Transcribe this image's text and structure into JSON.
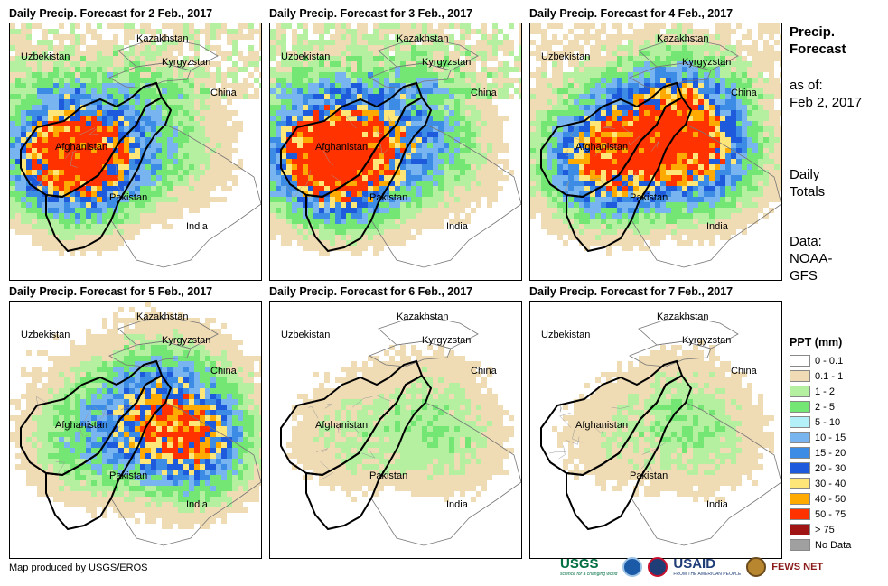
{
  "panels": [
    {
      "title": "Daily Precip. Forecast for 2 Feb., 2017",
      "intensity": [
        0.85,
        0.55,
        0.25,
        0.1
      ]
    },
    {
      "title": "Daily Precip. Forecast for 3 Feb., 2017",
      "intensity": [
        0.95,
        0.65,
        0.35,
        0.15
      ]
    },
    {
      "title": "Daily Precip. Forecast for 4 Feb., 2017",
      "intensity": [
        0.3,
        0.7,
        0.95,
        0.4
      ]
    },
    {
      "title": "Daily Precip. Forecast for 5 Feb., 2017",
      "intensity": [
        0.1,
        0.3,
        0.5,
        0.75
      ]
    },
    {
      "title": "Daily Precip. Forecast for 6 Feb., 2017",
      "intensity": [
        0.05,
        0.15,
        0.12,
        0.2
      ]
    },
    {
      "title": "Daily Precip. Forecast for 7 Feb., 2017",
      "intensity": [
        0.03,
        0.12,
        0.15,
        0.18
      ]
    }
  ],
  "countries": [
    "Kazakhstan",
    "Uzbekistan",
    "Kyrgyzstan",
    "China",
    "Afghanistan",
    "Pakistan",
    "India"
  ],
  "side": {
    "title_line1": "Precip.",
    "title_line2": "Forecast",
    "asof_line1": "as of:",
    "asof_line2": "Feb 2, 2017",
    "daily_line1": "Daily",
    "daily_line2": "Totals",
    "data_line1": "Data:",
    "data_line2": "NOAA-",
    "data_line3": "GFS"
  },
  "legend": {
    "title": "PPT (mm)",
    "items": [
      {
        "label": "0 - 0.1",
        "color": "#ffffff"
      },
      {
        "label": "0.1 - 1",
        "color": "#f0dcb4"
      },
      {
        "label": "1 - 2",
        "color": "#b4f0a0"
      },
      {
        "label": "2 - 5",
        "color": "#73e673"
      },
      {
        "label": "5 - 10",
        "color": "#b4f0f8"
      },
      {
        "label": "10 - 15",
        "color": "#78b4f0"
      },
      {
        "label": "15 - 20",
        "color": "#3c8ce6"
      },
      {
        "label": "20 - 30",
        "color": "#1e5adc"
      },
      {
        "label": "30 - 40",
        "color": "#ffe678"
      },
      {
        "label": "40 - 50",
        "color": "#ffaa00"
      },
      {
        "label": "50 - 75",
        "color": "#ff3200"
      },
      {
        "label": "> 75",
        "color": "#a01414"
      },
      {
        "label": "No Data",
        "color": "#a0a0a0"
      }
    ]
  },
  "credit": "Map produced by USGS/EROS",
  "logos": {
    "usgs": "USGS",
    "usgs_tagline": "science for a changing world",
    "usaid": "USAID",
    "usaid_tagline": "FROM THE AMERICAN PEOPLE",
    "fews": "FEWS NET"
  }
}
